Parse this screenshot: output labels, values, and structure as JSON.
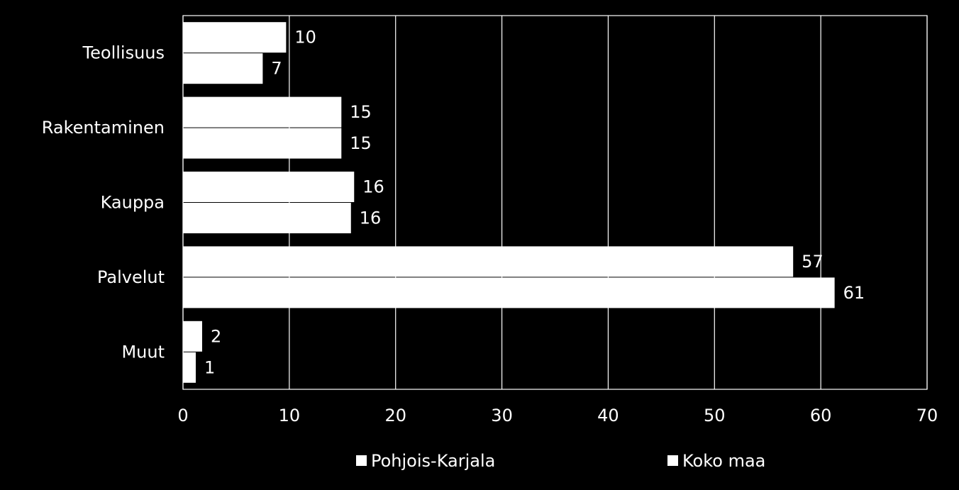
{
  "chart_data": {
    "type": "bar",
    "orientation": "horizontal",
    "categories": [
      "Teollisuus",
      "Rakentaminen",
      "Kauppa",
      "Palvelut",
      "Muut"
    ],
    "series": [
      {
        "name": "Pohjois-Karjala",
        "values": [
          9.7,
          14.9,
          16.1,
          57.4,
          1.8
        ],
        "labels": [
          "10",
          "15",
          "16",
          "57",
          "2"
        ],
        "color": "#ffffff"
      },
      {
        "name": "Koko maa",
        "values": [
          7.5,
          14.9,
          15.8,
          61.3,
          1.2
        ],
        "labels": [
          "7",
          "15",
          "16",
          "61",
          "1"
        ],
        "color": "#ffffff"
      }
    ],
    "xlim": [
      0,
      70
    ],
    "xticks": [
      "0",
      "10",
      "20",
      "30",
      "40",
      "50",
      "60",
      "70"
    ],
    "grid": "vertical",
    "legend": "bottom",
    "background": "#000000"
  }
}
